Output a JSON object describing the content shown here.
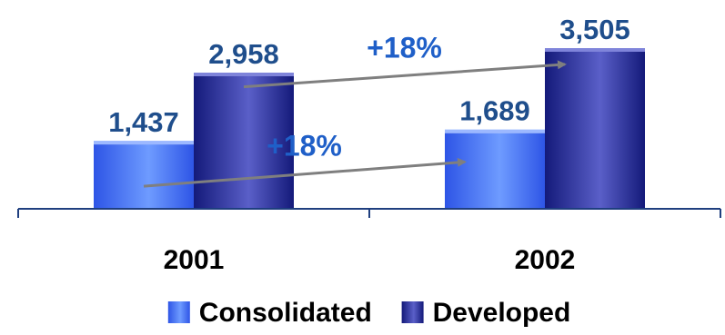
{
  "chart_data": {
    "type": "bar",
    "categories": [
      "2001",
      "2002"
    ],
    "series": [
      {
        "name": "Consolidated",
        "values": [
          1437,
          1689
        ],
        "labels": [
          "1,437",
          "1,689"
        ],
        "color_light": "#6E9BFF",
        "color_dark": "#2E55E6",
        "color_top": "#9CB8FF"
      },
      {
        "name": "Developed",
        "values": [
          2958,
          3505
        ],
        "labels": [
          "2,958",
          "3,505"
        ],
        "color_light": "#5A5FC8",
        "color_dark": "#141A7A",
        "color_top": "#7F84DA"
      }
    ],
    "annotations": [
      {
        "text": "+18%",
        "series": "Developed",
        "from_category": "2001",
        "to_category": "2002"
      },
      {
        "text": "+18%",
        "series": "Consolidated",
        "from_category": "2001",
        "to_category": "2002"
      }
    ],
    "ylim": [
      0,
      3505
    ],
    "legend_position": "bottom",
    "grid": false,
    "label_color": "#1F4E8C",
    "annotation_color": "#1F5FC8",
    "arrow_color": "#7F7F7F",
    "axis_color": "#1F3F7F",
    "text_color": "#000000"
  }
}
